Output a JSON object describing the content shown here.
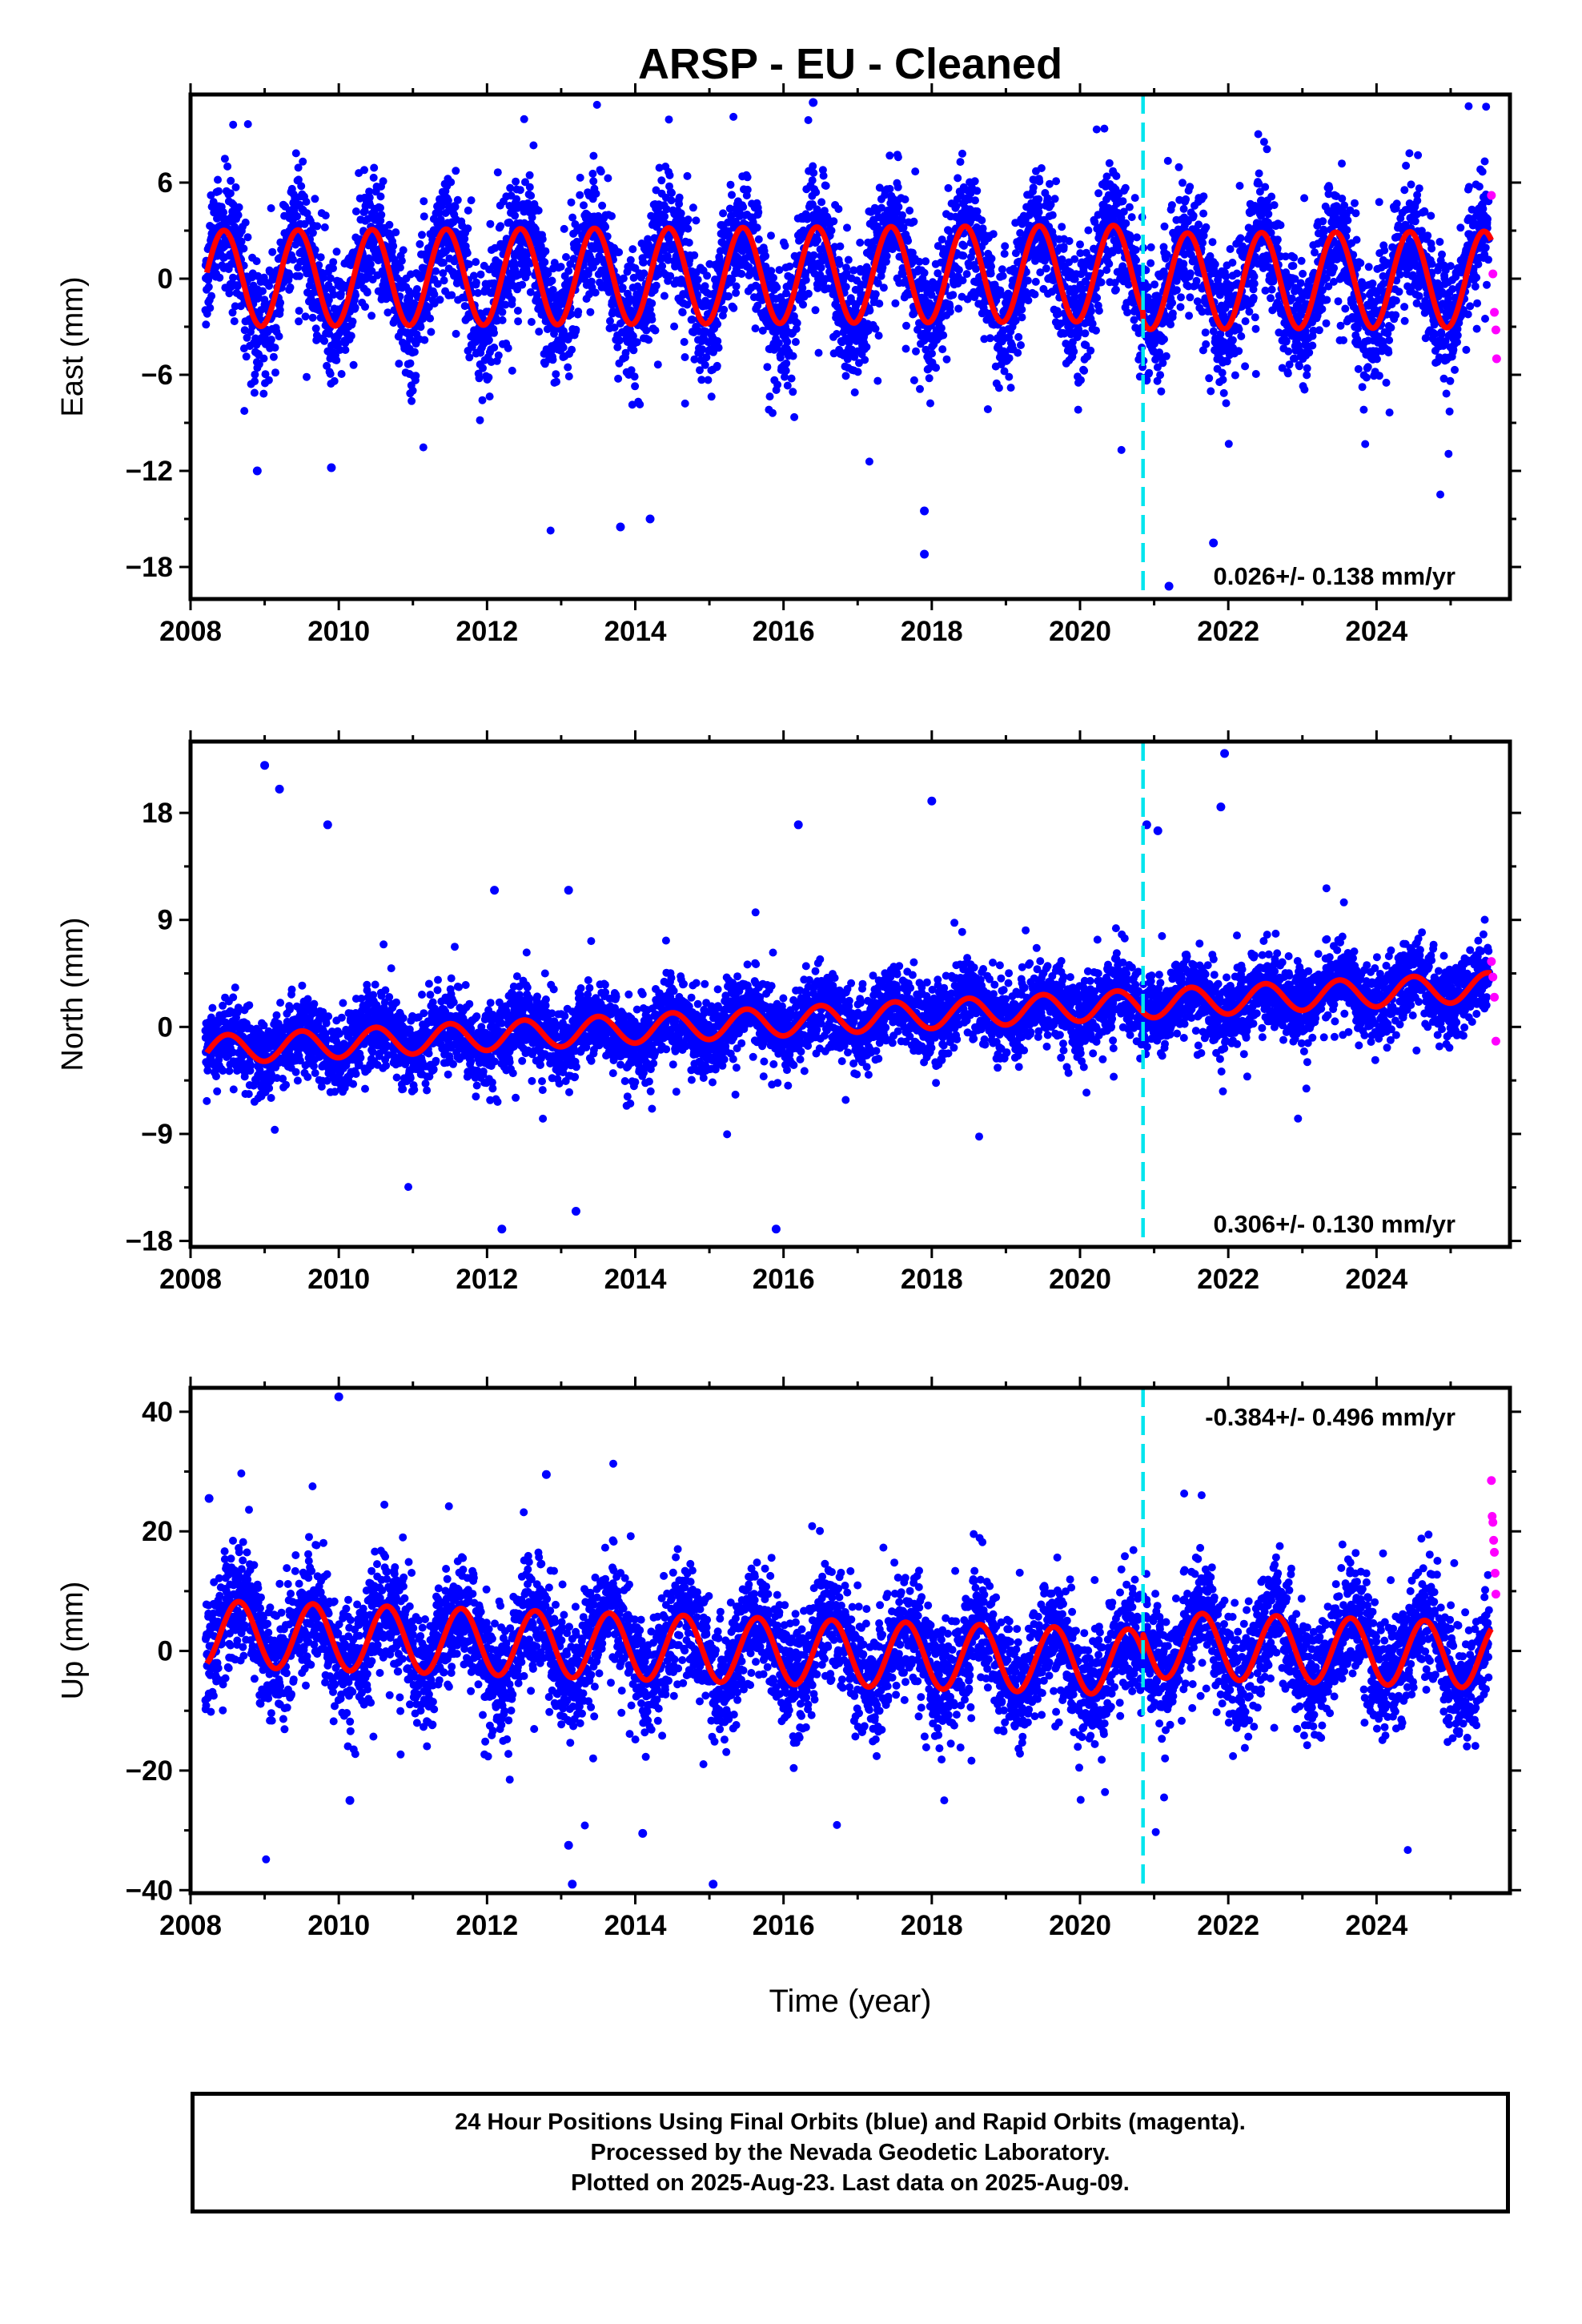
{
  "chart_data": {
    "title": "ARSP  - EU - Cleaned",
    "xlabel": "Time (year)",
    "x_ticks": [
      2008,
      2010,
      2012,
      2014,
      2016,
      2018,
      2020,
      2022,
      2024
    ],
    "xlim": [
      2008.0,
      2025.8
    ],
    "event_line_x": 2020.85,
    "series_legend": {
      "final": "24 Hour Positions Using Final Orbits (blue)",
      "rapid": "Rapid Orbits (magenta)"
    },
    "colors": {
      "final_points": "#0000ff",
      "rapid_points": "#ff00ff",
      "model_fit": "#ff0000",
      "event_line": "#00e5ee"
    },
    "panels": [
      {
        "type": "scatter",
        "ylabel": "East (mm)",
        "ylim": [
          -20,
          11.5
        ],
        "y_ticks": [
          6,
          0,
          -6,
          -12,
          -18
        ],
        "y_tick_labels": [
          "6",
          "0",
          "−6",
          "−12",
          "−18"
        ],
        "rate_text": "0.026+/- 0.138 mm/yr",
        "rate_position": "bottom-right",
        "model": {
          "offset_start": 0.0,
          "trend_per_year": 0.026,
          "amplitude": 3.0,
          "phase_peak_year": 2008.45,
          "offset_shift_at_event": -0.5,
          "noise_sd": 1.9
        },
        "rapid_points": {
          "x": [
            2025.55,
            2025.57,
            2025.59,
            2025.61,
            2025.62
          ],
          "y": [
            5.2,
            0.3,
            -2.1,
            -3.2,
            -5.0
          ]
        },
        "outliers": {
          "x": [
            2016.4,
            2013.8,
            2014.2,
            2017.9,
            2017.9,
            2021.2,
            2021.8,
            2009.9,
            2008.9
          ],
          "y": [
            11.0,
            -15.5,
            -15.0,
            -14.5,
            -17.2,
            -19.2,
            -16.5,
            -11.8,
            -12.0
          ]
        }
      },
      {
        "type": "scatter",
        "ylabel": "North (mm)",
        "ylim": [
          -18.5,
          24
        ],
        "y_ticks": [
          18,
          9,
          0,
          -9,
          -18
        ],
        "y_tick_labels": [
          "18",
          "9",
          "0",
          "−9",
          "−18"
        ],
        "rate_text": "0.306+/- 0.130 mm/yr",
        "rate_position": "bottom-right",
        "model": {
          "offset_start": -2.0,
          "trend_per_year": 0.306,
          "amplitude": 1.2,
          "phase_peak_year": 2008.5,
          "offset_shift_at_event": 0.0,
          "noise_sd": 1.6
        },
        "rapid_points": {
          "x": [
            2025.55,
            2025.57,
            2025.59,
            2025.61
          ],
          "y": [
            5.5,
            4.2,
            2.5,
            -1.2
          ]
        },
        "outliers": {
          "x": [
            2009.0,
            2009.2,
            2009.85,
            2012.1,
            2013.1,
            2016.2,
            2018.0,
            2021.95,
            2021.9,
            2012.2,
            2013.2,
            2015.9,
            2020.9,
            2021.05
          ],
          "y": [
            22.0,
            20.0,
            17.0,
            11.5,
            11.5,
            17.0,
            19.0,
            23.0,
            18.5,
            -17.0,
            -15.5,
            -17.0,
            17.0,
            16.5
          ]
        }
      },
      {
        "type": "scatter",
        "ylabel": "Up (mm)",
        "ylim": [
          -40.5,
          44
        ],
        "y_ticks": [
          40,
          20,
          0,
          -20,
          -40
        ],
        "y_tick_labels": [
          "40",
          "20",
          "0",
          "−20",
          "−40"
        ],
        "rate_text": "-0.384+/- 0.496 mm/yr",
        "rate_position": "top-right",
        "model": {
          "offset_start": 3.0,
          "trend_per_year": -0.384,
          "amplitude": 5.5,
          "phase_peak_year": 2008.65,
          "offset_shift_at_event": 3.0,
          "noise_sd": 4.8
        },
        "rapid_points": {
          "x": [
            2025.55,
            2025.56,
            2025.57,
            2025.58,
            2025.59,
            2025.6,
            2025.61
          ],
          "y": [
            28.5,
            22.5,
            21.5,
            18.5,
            16.5,
            13.0,
            9.5
          ]
        },
        "outliers": {
          "x": [
            2010.0,
            2012.8,
            2013.1,
            2013.15,
            2014.1,
            2015.05,
            2010.15,
            2008.25
          ],
          "y": [
            42.5,
            29.5,
            -32.5,
            -39.0,
            -30.5,
            -39.0,
            -25.0,
            25.5
          ]
        }
      }
    ]
  },
  "footer": {
    "line1": "24 Hour Positions Using Final Orbits (blue) and Rapid Orbits (magenta).",
    "line2": "Processed by the Nevada Geodetic Laboratory.",
    "line3": "Plotted on 2025-Aug-23. Last data on 2025-Aug-09."
  }
}
